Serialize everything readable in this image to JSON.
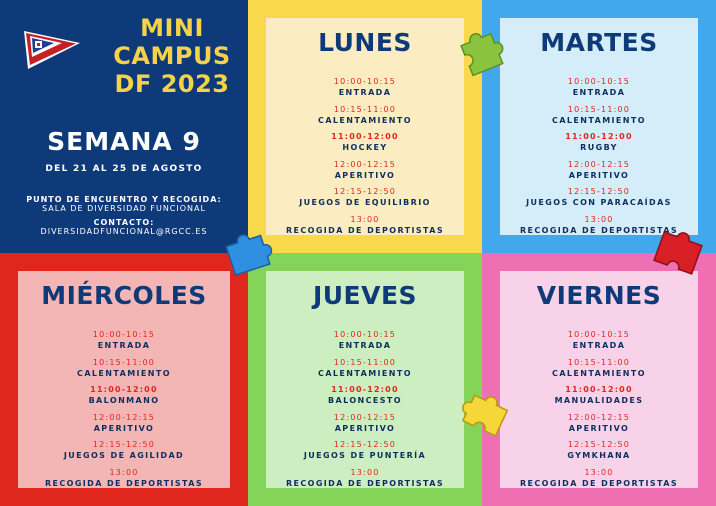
{
  "colors": {
    "navy": "#0e3a7a",
    "yellow": "#f9d94c",
    "blue": "#42a8ee",
    "red": "#e0271e",
    "green": "#84d45a",
    "pink": "#ef6fb3",
    "time_red": "#e2251d"
  },
  "info": {
    "logo": "rgcc-pennant-logo",
    "title_lines": [
      "MINI",
      "CAMPUS",
      "DF 2023"
    ],
    "semana": "SEMANA 9",
    "dates": "DEL 21 AL 25 DE AGOSTO",
    "meeting_label": "PUNTO DE ENCUENTRO Y RECOGIDA:",
    "meeting_place": "SALA DE DIVERSIDAD FUNCIONAL",
    "contact_label": "CONTACTO:",
    "contact_email": "DIVERSIDADFUNCIONAL@RGCC.ES"
  },
  "days": [
    {
      "name": "LUNES",
      "schedule": [
        {
          "time": "10:00-10:15",
          "activity": "ENTRADA"
        },
        {
          "time": "10:15-11:00",
          "activity": "CALENTAMIENTO"
        },
        {
          "time": "11:00-12:00",
          "activity": "HOCKEY"
        },
        {
          "time": "12:00-12:15",
          "activity": "APERITIVO"
        },
        {
          "time": "12:15-12:50",
          "activity": "JUEGOS DE EQUILIBRIO"
        },
        {
          "time": "13:00",
          "activity": "RECOGIDA DE DEPORTISTAS"
        }
      ]
    },
    {
      "name": "MARTES",
      "schedule": [
        {
          "time": "10:00-10:15",
          "activity": "ENTRADA"
        },
        {
          "time": "10:15-11:00",
          "activity": "CALENTAMIENTO"
        },
        {
          "time": "11:00-12:00",
          "activity": "RUGBY"
        },
        {
          "time": "12:00-12:15",
          "activity": "APERITIVO"
        },
        {
          "time": "12:15-12:50",
          "activity": "JUEGOS CON PARACAÍDAS"
        },
        {
          "time": "13:00",
          "activity": "RECOGIDA DE DEPORTISTAS"
        }
      ]
    },
    {
      "name": "MIÉRCOLES",
      "schedule": [
        {
          "time": "10:00-10:15",
          "activity": "ENTRADA"
        },
        {
          "time": "10:15-11:00",
          "activity": "CALENTAMIENTO"
        },
        {
          "time": "11:00-12:00",
          "activity": "BALONMANO"
        },
        {
          "time": "12:00-12:15",
          "activity": "APERITIVO"
        },
        {
          "time": "12:15-12:50",
          "activity": "JUEGOS DE AGILIDAD"
        },
        {
          "time": "13:00",
          "activity": "RECOGIDA DE DEPORTISTAS"
        }
      ]
    },
    {
      "name": "JUEVES",
      "schedule": [
        {
          "time": "10:00-10:15",
          "activity": "ENTRADA"
        },
        {
          "time": "10:15-11:00",
          "activity": "CALENTAMIENTO"
        },
        {
          "time": "11:00-12:00",
          "activity": "BALONCESTO"
        },
        {
          "time": "12:00-12:15",
          "activity": "APERITIVO"
        },
        {
          "time": "12:15-12:50",
          "activity": "JUEGOS DE PUNTERÍA"
        },
        {
          "time": "13:00",
          "activity": "RECOGIDA DE DEPORTISTAS"
        }
      ]
    },
    {
      "name": "VIERNES",
      "schedule": [
        {
          "time": "10:00-10:15",
          "activity": "ENTRADA"
        },
        {
          "time": "10:15-11:00",
          "activity": "CALENTAMIENTO"
        },
        {
          "time": "11:00-12:00",
          "activity": "MANUALIDADES"
        },
        {
          "time": "12:00-12:15",
          "activity": "APERITIVO"
        },
        {
          "time": "12:15-12:50",
          "activity": "GYMKHANA"
        },
        {
          "time": "13:00",
          "activity": "RECOGIDA DE DEPORTISTAS"
        }
      ]
    }
  ],
  "decorations": [
    "green-puzzle-piece-icon",
    "blue-puzzle-piece-icon",
    "red-puzzle-piece-icon",
    "yellow-puzzle-piece-icon"
  ]
}
